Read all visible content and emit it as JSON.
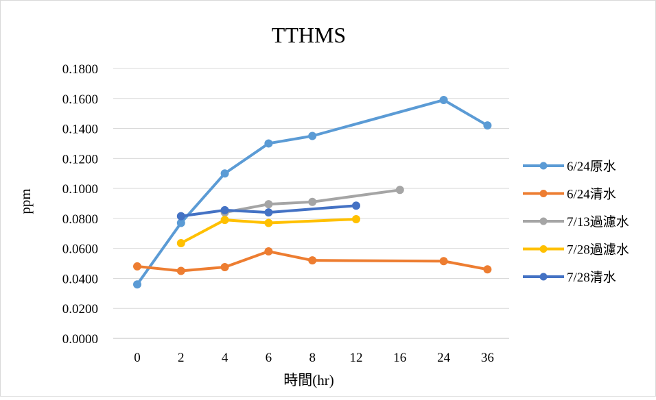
{
  "chart_data": {
    "type": "line",
    "title": "TTHMS",
    "xlabel": "時間(hr)",
    "ylabel": "ppm",
    "categories": [
      "0",
      "2",
      "4",
      "6",
      "8",
      "12",
      "16",
      "24",
      "36"
    ],
    "ylim": [
      0,
      0.18
    ],
    "yticks": [
      "0.0000",
      "0.0200",
      "0.0400",
      "0.0600",
      "0.0800",
      "0.1000",
      "0.1200",
      "0.1400",
      "0.1600",
      "0.1800"
    ],
    "grid": true,
    "legend_position": "right",
    "series": [
      {
        "name": "6/24原水",
        "color": "#5B9BD5",
        "values": [
          0.036,
          0.077,
          0.11,
          0.13,
          0.135,
          null,
          null,
          0.159,
          0.142
        ]
      },
      {
        "name": "6/24清水",
        "color": "#ED7D31",
        "values": [
          0.048,
          0.045,
          0.0475,
          0.058,
          0.052,
          null,
          null,
          0.0515,
          0.046
        ]
      },
      {
        "name": "7/13過濾水",
        "color": "#A5A5A5",
        "values": [
          null,
          null,
          0.084,
          0.0895,
          0.091,
          null,
          0.099,
          null,
          null
        ]
      },
      {
        "name": "7/28過濾水",
        "color": "#FFC000",
        "values": [
          null,
          0.0635,
          0.079,
          0.077,
          null,
          0.0795,
          null,
          null,
          null
        ]
      },
      {
        "name": "7/28清水",
        "color": "#4472C4",
        "values": [
          null,
          0.0815,
          0.0855,
          0.084,
          null,
          0.0885,
          null,
          null,
          null
        ]
      }
    ]
  }
}
